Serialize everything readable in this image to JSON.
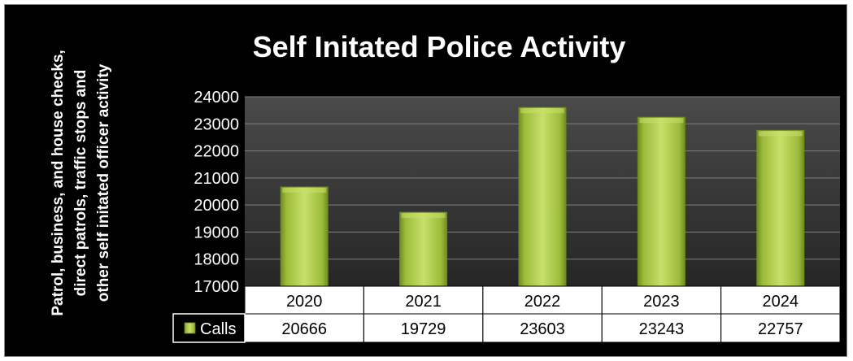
{
  "chart_data": {
    "type": "bar",
    "title": "Self Initated Police Activity",
    "ylabel": "Patrol, business, and house checks, direct patrols, traffic stops and other self initated officer activity",
    "xlabel": "",
    "categories": [
      "2020",
      "2021",
      "2022",
      "2023",
      "2024"
    ],
    "series": [
      {
        "name": "Calls",
        "values": [
          20666,
          19729,
          23603,
          23243,
          22757
        ]
      }
    ],
    "ylim": [
      17000,
      24000
    ],
    "yticks": [
      "17000",
      "18000",
      "19000",
      "20000",
      "21000",
      "22000",
      "23000",
      "24000"
    ],
    "table_row_values": [
      "20666",
      "19729",
      "23603",
      "23243",
      "22757"
    ],
    "grid": true,
    "legend_placement": "data-table",
    "colors": {
      "background": "#000000",
      "plot_area": "#3a3a3a",
      "bar": "#9cbb3a",
      "bar_light": "#c8e06a",
      "bar_dark": "#6f8c1e",
      "gridline": "#7f7f7f"
    }
  }
}
